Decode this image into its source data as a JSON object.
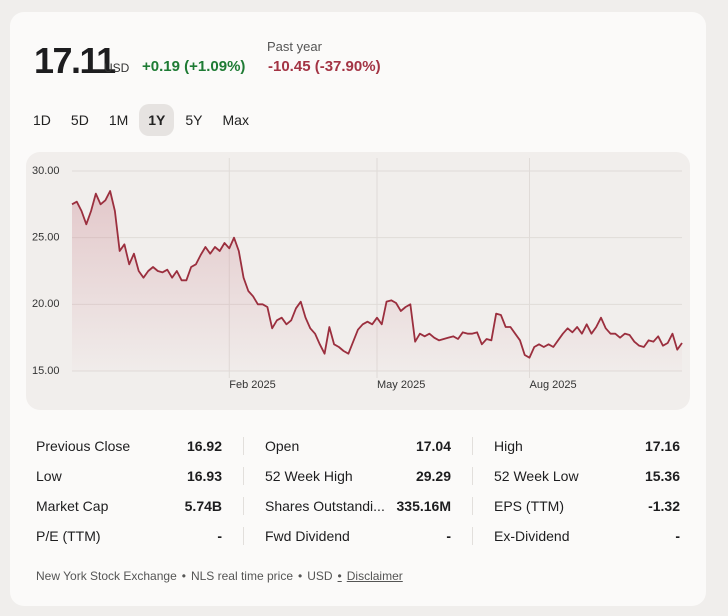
{
  "header": {
    "price": "17.11",
    "currency": "USD",
    "change": "+0.19 (+1.09%)",
    "past_year_label": "Past year",
    "past_year_change": "-10.45 (-37.90%)"
  },
  "ranges": {
    "options": [
      "1D",
      "5D",
      "1M",
      "1Y",
      "5Y",
      "Max"
    ],
    "active": 3
  },
  "chart_data": {
    "type": "line",
    "color": "#9b2f3e",
    "grid": true,
    "categories": [
      null,
      null,
      null,
      null,
      null,
      null,
      null,
      null,
      null,
      null,
      null,
      null,
      null,
      null,
      null,
      null,
      null,
      null,
      null,
      null,
      null,
      null,
      null,
      null,
      null,
      null,
      null,
      null,
      null,
      null,
      null,
      null,
      null,
      "Feb 2025",
      null,
      null,
      null,
      null,
      null,
      null,
      null,
      null,
      null,
      null,
      null,
      null,
      null,
      null,
      null,
      null,
      null,
      null,
      null,
      null,
      null,
      null,
      null,
      null,
      null,
      null,
      null,
      null,
      null,
      null,
      "May 2025",
      null,
      null,
      null,
      null,
      null,
      null,
      null,
      null,
      null,
      null,
      null,
      null,
      null,
      null,
      null,
      null,
      null,
      null,
      null,
      null,
      null,
      null,
      null,
      null,
      null,
      null,
      null,
      null,
      null,
      null,
      null,
      "Aug 2025",
      null,
      null,
      null,
      null,
      null,
      null,
      null,
      null,
      null,
      null,
      null,
      null,
      null,
      null,
      null,
      null,
      null,
      null,
      null,
      null,
      null,
      null,
      null,
      null,
      null,
      null,
      null,
      null,
      null,
      null,
      null,
      null
    ],
    "values": [
      27.5,
      27.7,
      27.0,
      26.0,
      27.0,
      28.3,
      27.5,
      27.8,
      28.5,
      27.0,
      24.0,
      24.5,
      23.0,
      23.8,
      22.5,
      22.0,
      22.5,
      22.8,
      22.5,
      22.4,
      22.6,
      22.0,
      22.5,
      21.8,
      21.8,
      22.8,
      23.0,
      23.7,
      24.3,
      23.8,
      24.3,
      24.0,
      24.6,
      24.2,
      25.0,
      24.0,
      22.0,
      21.0,
      20.6,
      20.0,
      20.0,
      19.8,
      18.2,
      18.8,
      19.0,
      18.5,
      18.8,
      19.7,
      20.2,
      19.0,
      18.2,
      17.8,
      17.0,
      16.3,
      18.3,
      17.0,
      16.8,
      16.5,
      16.3,
      17.2,
      18.1,
      18.5,
      18.7,
      18.5,
      19.0,
      18.5,
      20.2,
      20.3,
      20.1,
      19.5,
      19.8,
      20.0,
      17.2,
      17.8,
      17.6,
      17.8,
      17.5,
      17.3,
      17.4,
      17.5,
      17.6,
      17.4,
      17.9,
      17.8,
      17.8,
      17.9,
      17.0,
      17.4,
      17.3,
      19.3,
      19.2,
      18.3,
      18.3,
      17.8,
      17.3,
      16.2,
      16.0,
      16.8,
      17.0,
      16.8,
      17.0,
      16.8,
      17.3,
      17.8,
      18.2,
      17.9,
      18.3,
      17.8,
      18.5,
      17.8,
      18.3,
      19.0,
      18.2,
      17.8,
      17.8,
      17.5,
      17.8,
      17.7,
      17.2,
      16.9,
      16.8,
      17.3,
      17.2,
      17.6,
      16.9,
      17.1,
      17.8,
      16.6,
      17.1
    ],
    "ylim": [
      15,
      30
    ],
    "yticks": [
      {
        "value": 15,
        "label": "15.00"
      },
      {
        "value": 20,
        "label": "20.00"
      },
      {
        "value": 25,
        "label": "25.00"
      },
      {
        "value": 30,
        "label": "30.00"
      }
    ]
  },
  "stats": [
    [
      [
        "Previous Close",
        "16.92"
      ],
      [
        "Open",
        "17.04"
      ],
      [
        "High",
        "17.16"
      ]
    ],
    [
      [
        "Low",
        "16.93"
      ],
      [
        "52 Week High",
        "29.29"
      ],
      [
        "52 Week Low",
        "15.36"
      ]
    ],
    [
      [
        "Market Cap",
        "5.74B"
      ],
      [
        "Shares Outstandi...",
        "335.16M"
      ],
      [
        "EPS (TTM)",
        "-1.32"
      ]
    ],
    [
      [
        "P/E (TTM)",
        "-"
      ],
      [
        "Fwd Dividend",
        "-"
      ],
      [
        "Ex-Dividend",
        "-"
      ]
    ]
  ],
  "footer": [
    "New York Stock Exchange",
    "NLS real time price",
    "USD"
  ],
  "disclaimer": "Disclaimer"
}
